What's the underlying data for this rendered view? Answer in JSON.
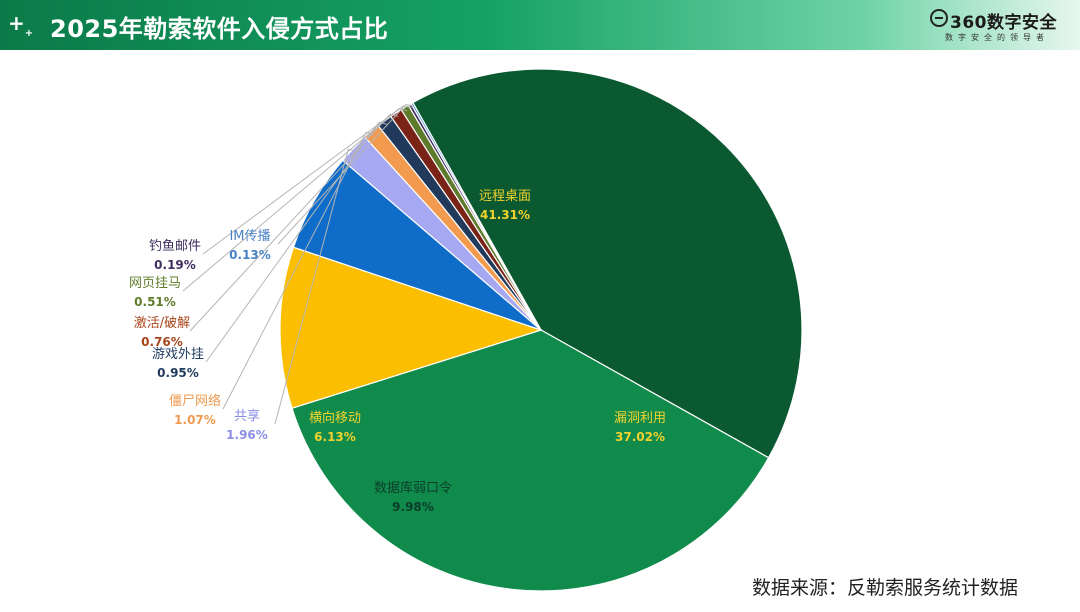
{
  "header": {
    "title": "2025年勒索软件入侵方式占比",
    "brand_name": "360数字安全",
    "brand_slogan": "数字安全的领导者",
    "plus_icon": "plus-icon"
  },
  "chart_data": {
    "type": "pie",
    "title": "2025年勒索软件入侵方式占比",
    "slices": [
      {
        "label": "远程桌面",
        "value": 41.31,
        "value_label": "41.31%",
        "color": "#0a5930",
        "label_color": "#f2d22e"
      },
      {
        "label": "漏洞利用",
        "value": 37.02,
        "value_label": "37.02%",
        "color": "#108b4c",
        "label_color": "#f2d22e"
      },
      {
        "label": "数据库弱口令",
        "value": 9.98,
        "value_label": "9.98%",
        "color": "#fbbe00",
        "label_color": "#0b3d2a"
      },
      {
        "label": "横向移动",
        "value": 6.13,
        "value_label": "6.13%",
        "color": "#0f6dc9",
        "label_color": "#f2d22e"
      },
      {
        "label": "共享",
        "value": 1.96,
        "value_label": "1.96%",
        "color": "#a7a8f2",
        "label_color": "#8b8ee6"
      },
      {
        "label": "僵尸网络",
        "value": 1.07,
        "value_label": "1.07%",
        "color": "#f29a4e",
        "label_color": "#f09a50"
      },
      {
        "label": "游戏外挂",
        "value": 0.95,
        "value_label": "0.95%",
        "color": "#213a5b",
        "label_color": "#1f3a5e"
      },
      {
        "label": "激活/破解",
        "value": 0.76,
        "value_label": "0.76%",
        "color": "#7a2418",
        "label_color": "#a8461c"
      },
      {
        "label": "网页挂马",
        "value": 0.51,
        "value_label": "0.51%",
        "color": "#5e7a2b",
        "label_color": "#5f7d2b"
      },
      {
        "label": "钓鱼邮件",
        "value": 0.19,
        "value_label": "0.19%",
        "color": "#3e2c5f",
        "label_color": "#3f2e5f"
      },
      {
        "label": "IM传播",
        "value": 0.13,
        "value_label": "0.13%",
        "color": "#4b8fd0",
        "label_color": "#4a83c4"
      }
    ]
  },
  "footer": {
    "source": "数据来源：反勒索服务统计数据"
  }
}
